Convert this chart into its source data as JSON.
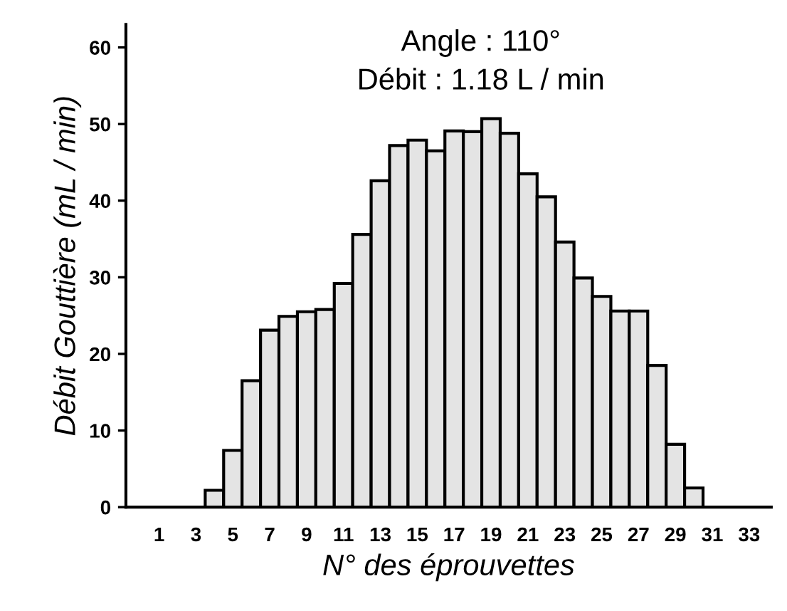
{
  "chart_data": {
    "type": "bar",
    "title": "Angle : 110°",
    "subtitle": "Débit : 1.18 L / min",
    "xlabel": "N° des éprouvettes",
    "ylabel": "Débit Gouttière (mL / min)",
    "x": [
      4,
      5,
      6,
      7,
      8,
      9,
      10,
      11,
      12,
      13,
      14,
      15,
      16,
      17,
      18,
      19,
      20,
      21,
      22,
      23,
      24,
      25,
      26,
      27,
      28,
      29,
      30
    ],
    "values": [
      2.2,
      7.4,
      16.5,
      23.1,
      24.9,
      25.5,
      25.8,
      29.2,
      35.6,
      42.6,
      47.2,
      47.9,
      46.5,
      49.1,
      49.0,
      50.7,
      48.8,
      43.5,
      40.5,
      34.6,
      29.9,
      27.5,
      25.6,
      25.6,
      18.5,
      8.2,
      2.5
    ],
    "color": "#e4e4e4",
    "xlim": [
      -0.8,
      34.2
    ],
    "xticks": [
      1,
      3,
      5,
      7,
      9,
      11,
      13,
      15,
      17,
      19,
      21,
      23,
      25,
      27,
      29,
      31,
      33
    ],
    "ylim": [
      0,
      63
    ],
    "yticks": [
      0,
      10,
      20,
      30,
      40,
      50,
      60
    ],
    "grid": false,
    "legend": false
  }
}
